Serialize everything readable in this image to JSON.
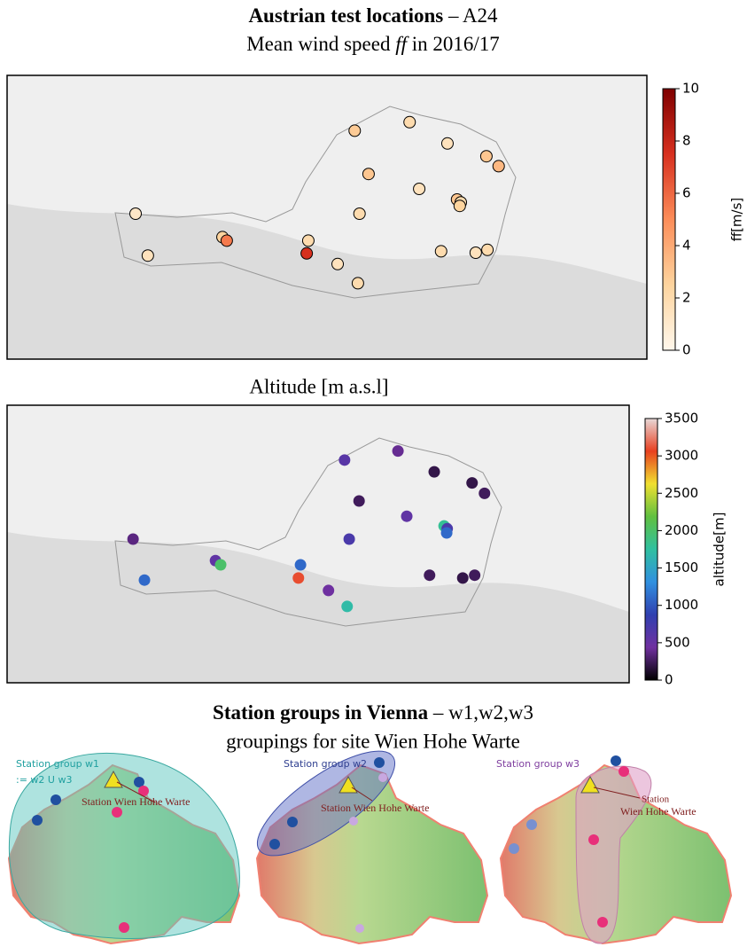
{
  "chart_data": [
    {
      "type": "scatter",
      "title": "Austrian test locations",
      "title_rest": "– A24",
      "subtitle": "Mean wind speed",
      "subtitle_symbol": "ff",
      "subtitle_rest": "in 2016/17",
      "xlim": [
        8,
        20
      ],
      "ylim": [
        45.5,
        49.5
      ],
      "lon": [
        10.41,
        10.64,
        12.04,
        12.12,
        13.65,
        13.62,
        14.2,
        14.58,
        14.52,
        15.55,
        14.78,
        14.61,
        15.73,
        16.26,
        16.99,
        17.22,
        16.44,
        16.51,
        16.49,
        16.14,
        16.79,
        17.01
      ],
      "lat": [
        47.55,
        46.96,
        47.22,
        47.17,
        47.17,
        46.99,
        46.84,
        46.57,
        48.72,
        48.84,
        48.11,
        47.55,
        47.9,
        48.54,
        48.36,
        48.22,
        47.75,
        47.71,
        47.66,
        47.02,
        47.0,
        47.04
      ],
      "values": [
        1.2,
        1.5,
        2.5,
        5.5,
        2.0,
        7.5,
        1.5,
        2.0,
        2.8,
        2.0,
        3.0,
        2.0,
        1.5,
        1.5,
        3.0,
        3.5,
        3.0,
        2.0,
        2.5,
        2.0,
        1.5,
        2.0
      ],
      "colorbar_label": "ff[m/s]",
      "clim": [
        0,
        10
      ],
      "cticks": [
        0,
        2,
        4,
        6,
        8,
        10
      ],
      "cmap": [
        "#fff7ec",
        "#fdd49e",
        "#fc8d59",
        "#d7301f",
        "#7f0000"
      ],
      "marker_edge": "#000000"
    },
    {
      "type": "scatter",
      "title": "Altitude [m a.s.l]",
      "xlim": [
        8,
        20
      ],
      "ylim": [
        45.5,
        49.5
      ],
      "lon": [
        14.51,
        15.54,
        16.24,
        16.97,
        17.21,
        14.79,
        15.71,
        16.43,
        16.49,
        16.48,
        10.43,
        14.6,
        12.02,
        12.12,
        13.66,
        10.65,
        13.62,
        16.15,
        16.79,
        17.02,
        14.2,
        14.56
      ],
      "lat": [
        48.71,
        48.84,
        48.54,
        48.38,
        48.23,
        48.12,
        47.9,
        47.76,
        47.72,
        47.66,
        47.57,
        47.57,
        47.26,
        47.2,
        47.2,
        46.98,
        47.01,
        47.05,
        47.01,
        47.05,
        46.83,
        46.6
      ],
      "values": [
        600,
        400,
        200,
        200,
        250,
        250,
        550,
        1800,
        700,
        1100,
        350,
        700,
        550,
        2000,
        1100,
        1100,
        3100,
        250,
        200,
        250,
        450,
        1700
      ],
      "colorbar_label": "altitude[m]",
      "clim": [
        0,
        3500
      ],
      "cticks": [
        0,
        500,
        1000,
        1500,
        2000,
        2500,
        3000,
        3500
      ],
      "cmap": [
        "#000000",
        "#7030a0",
        "#3040b0",
        "#3090e0",
        "#30c0a0",
        "#60c040",
        "#f0e030",
        "#e84020",
        "#e8d8d8"
      ]
    }
  ],
  "vienna": {
    "title": "Station groups in Vienna",
    "title_rest": "– w1,w2,w3",
    "subtitle": "groupings for site Wien Hohe Warte",
    "panels": [
      {
        "group": "Station group w1",
        "definition": ":= w2 U w3",
        "site": "Station Wien Hohe Warte"
      },
      {
        "group": "Station group w2",
        "site": "Station Wien Hohe Warte"
      },
      {
        "group": "Station group w3",
        "site": "Station",
        "site2": "Wien Hohe Warte"
      }
    ]
  }
}
